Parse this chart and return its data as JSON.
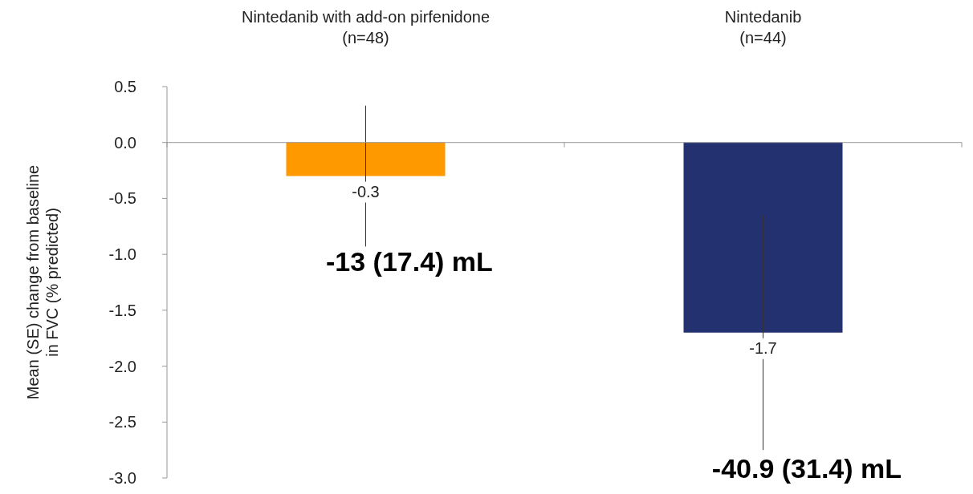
{
  "chart_data": {
    "type": "bar",
    "categories": [
      "Nintedanib with add-on pirfenidone\n(n=48)",
      "Nintedanib\n(n=44)"
    ],
    "values": [
      -0.3,
      -1.7
    ],
    "colors": [
      "#ff9900",
      "#233170"
    ],
    "errors": [
      0.63,
      1.05
    ],
    "data_labels": true,
    "ylabel": "Mean (SE) change from baseline\nin FVC (% predicted)",
    "ylim": [
      -3.0,
      0.5
    ],
    "yticks": [
      {
        "value": 0.5,
        "label": "0.5"
      },
      {
        "value": 0,
        "label": "0.0"
      },
      {
        "value": -0.5,
        "label": "-0.5"
      },
      {
        "value": -1,
        "label": "-1.0"
      },
      {
        "value": -1.5,
        "label": "-1.5"
      },
      {
        "value": -2,
        "label": "-2.0"
      },
      {
        "value": -2.5,
        "label": "-2.5"
      },
      {
        "value": -3,
        "label": "-3.0"
      }
    ],
    "annotations": [
      "-13 (17.4) mL",
      "-40.9 (31.4) mL"
    ]
  }
}
